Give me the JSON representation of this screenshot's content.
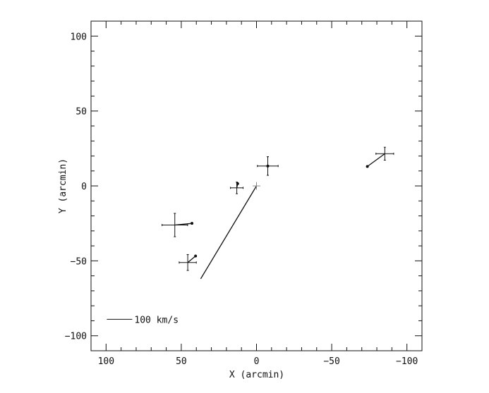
{
  "chart_data": {
    "type": "scatter",
    "title": "",
    "xlabel": "X (arcmin)",
    "ylabel": "Y (arcmin)",
    "xlim": [
      110,
      -110
    ],
    "ylim": [
      -110,
      110
    ],
    "x_reversed": true,
    "xticks": [
      100,
      50,
      0,
      -50,
      -100
    ],
    "yticks": [
      100,
      50,
      0,
      -50,
      -100
    ],
    "xtick_labels": [
      "100",
      "50",
      "0",
      "−50",
      "−100"
    ],
    "ytick_labels": [
      "100",
      "50",
      "0",
      "−50",
      "−100"
    ],
    "minor_tick_step": 10,
    "grid": false,
    "points": [
      {
        "x": -7.5,
        "y": 13.3,
        "xerr": 6.9,
        "yerr": 6.2,
        "vx": -7.5,
        "vy": 13.3
      },
      {
        "x": 13.1,
        "y": -1.3,
        "xerr": 4.2,
        "yerr": 3.9,
        "vx": 12.5,
        "vy": 1.5
      },
      {
        "x": 54.3,
        "y": -26.1,
        "xerr": 8.5,
        "yerr": 7.8,
        "vx": 42.9,
        "vy": -25.0
      },
      {
        "x": 45.7,
        "y": -51.1,
        "xerr": 5.7,
        "yerr": 5.3,
        "vx": 40.5,
        "vy": -46.8
      },
      {
        "x": -85.3,
        "y": 21.5,
        "xerr": 5.9,
        "yerr": 4.3,
        "vx": -73.7,
        "vy": 13.0
      }
    ],
    "center": {
      "x": 0,
      "y": 0,
      "size": 2.5,
      "color": "#888888",
      "vx": 37.1,
      "vy": -62.0
    },
    "scale_bar": {
      "x1": 99.5,
      "x2": 82.6,
      "y": -89,
      "label": "100 km/s"
    }
  }
}
